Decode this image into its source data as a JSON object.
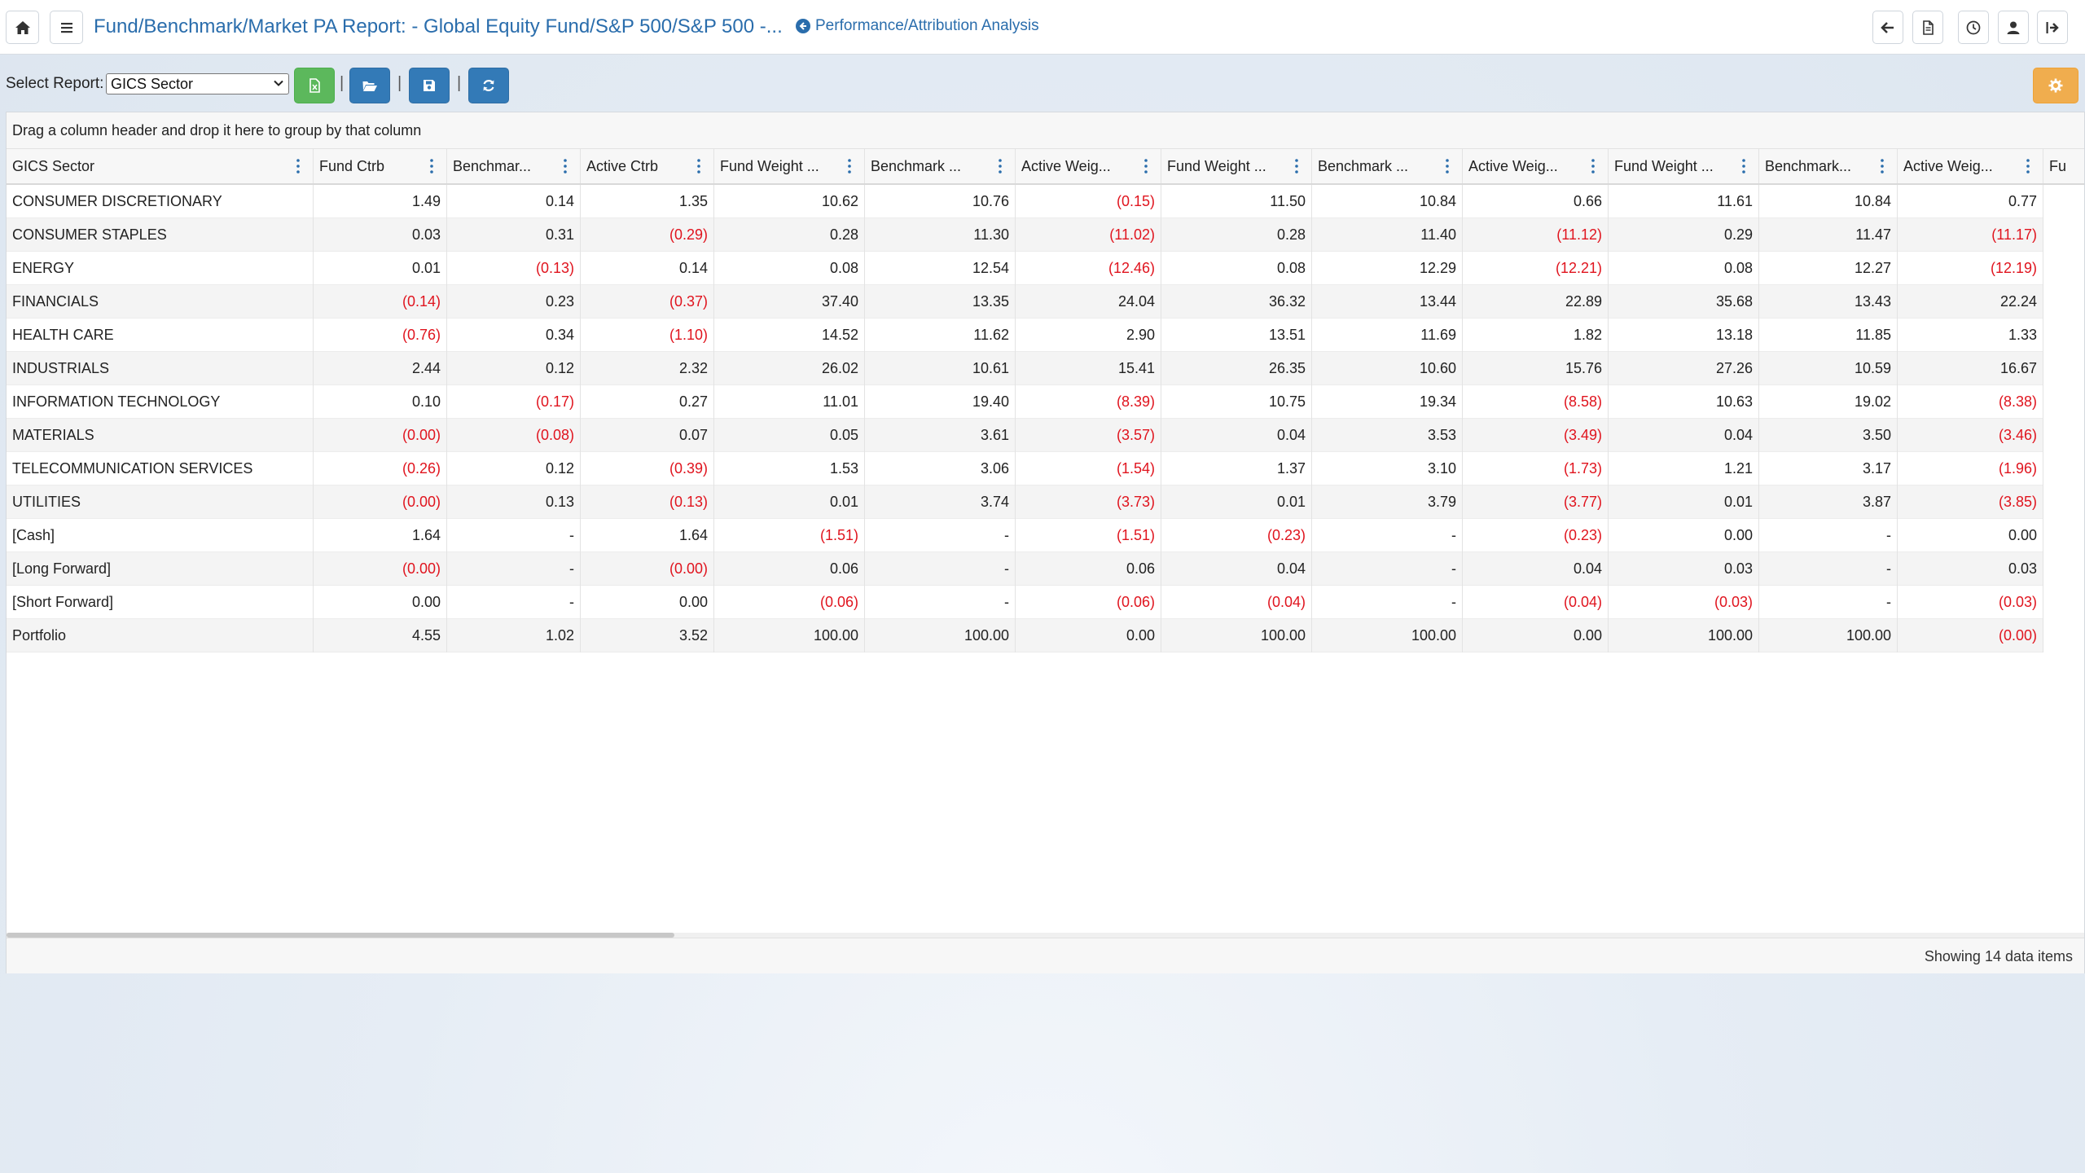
{
  "header": {
    "title": "Fund/Benchmark/Market PA Report: - Global Equity Fund/S&P 500/S&P 500 -...",
    "analysis_link": "Performance/Attribution Analysis",
    "icons": [
      "home-icon",
      "menu-icon",
      "back-arrow-icon",
      "document-icon",
      "clock-icon",
      "user-icon",
      "logout-icon"
    ]
  },
  "toolbar": {
    "select_label": "Select Report:",
    "select_value": "GICS Sector",
    "separator": "|",
    "buttons": [
      "export-excel-icon",
      "folder-open-icon",
      "save-icon",
      "refresh-icon",
      "settings-icon"
    ]
  },
  "grid": {
    "group_hint": "Drag a column header and drop it here to group by that column",
    "columns": [
      "GICS Sector",
      "Fund Ctrb",
      "Benchmar...",
      "Active Ctrb",
      "Fund Weight ...",
      "Benchmark ...",
      "Active Weig...",
      "Fund Weight ...",
      "Benchmark ...",
      "Active Weig...",
      "Fund Weight ...",
      "Benchmark...",
      "Active Weig...",
      "Fu"
    ],
    "rows": [
      [
        "CONSUMER DISCRETIONARY",
        "1.49",
        "0.14",
        "1.35",
        "10.62",
        "10.76",
        "(0.15)",
        "11.50",
        "10.84",
        "0.66",
        "11.61",
        "10.84",
        "0.77"
      ],
      [
        "CONSUMER STAPLES",
        "0.03",
        "0.31",
        "(0.29)",
        "0.28",
        "11.30",
        "(11.02)",
        "0.28",
        "11.40",
        "(11.12)",
        "0.29",
        "11.47",
        "(11.17)"
      ],
      [
        "ENERGY",
        "0.01",
        "(0.13)",
        "0.14",
        "0.08",
        "12.54",
        "(12.46)",
        "0.08",
        "12.29",
        "(12.21)",
        "0.08",
        "12.27",
        "(12.19)"
      ],
      [
        "FINANCIALS",
        "(0.14)",
        "0.23",
        "(0.37)",
        "37.40",
        "13.35",
        "24.04",
        "36.32",
        "13.44",
        "22.89",
        "35.68",
        "13.43",
        "22.24"
      ],
      [
        "HEALTH CARE",
        "(0.76)",
        "0.34",
        "(1.10)",
        "14.52",
        "11.62",
        "2.90",
        "13.51",
        "11.69",
        "1.82",
        "13.18",
        "11.85",
        "1.33"
      ],
      [
        "INDUSTRIALS",
        "2.44",
        "0.12",
        "2.32",
        "26.02",
        "10.61",
        "15.41",
        "26.35",
        "10.60",
        "15.76",
        "27.26",
        "10.59",
        "16.67"
      ],
      [
        "INFORMATION TECHNOLOGY",
        "0.10",
        "(0.17)",
        "0.27",
        "11.01",
        "19.40",
        "(8.39)",
        "10.75",
        "19.34",
        "(8.58)",
        "10.63",
        "19.02",
        "(8.38)"
      ],
      [
        "MATERIALS",
        "(0.00)",
        "(0.08)",
        "0.07",
        "0.05",
        "3.61",
        "(3.57)",
        "0.04",
        "3.53",
        "(3.49)",
        "0.04",
        "3.50",
        "(3.46)"
      ],
      [
        "TELECOMMUNICATION SERVICES",
        "(0.26)",
        "0.12",
        "(0.39)",
        "1.53",
        "3.06",
        "(1.54)",
        "1.37",
        "3.10",
        "(1.73)",
        "1.21",
        "3.17",
        "(1.96)"
      ],
      [
        "UTILITIES",
        "(0.00)",
        "0.13",
        "(0.13)",
        "0.01",
        "3.74",
        "(3.73)",
        "0.01",
        "3.79",
        "(3.77)",
        "0.01",
        "3.87",
        "(3.85)"
      ],
      [
        "[Cash]",
        "1.64",
        "-",
        "1.64",
        "(1.51)",
        "-",
        "(1.51)",
        "(0.23)",
        "-",
        "(0.23)",
        "0.00",
        "-",
        "0.00"
      ],
      [
        "[Long Forward]",
        "(0.00)",
        "-",
        "(0.00)",
        "0.06",
        "-",
        "0.06",
        "0.04",
        "-",
        "0.04",
        "0.03",
        "-",
        "0.03"
      ],
      [
        "[Short Forward]",
        "0.00",
        "-",
        "0.00",
        "(0.06)",
        "-",
        "(0.06)",
        "(0.04)",
        "-",
        "(0.04)",
        "(0.03)",
        "-",
        "(0.03)"
      ],
      [
        "Portfolio",
        "4.55",
        "1.02",
        "3.52",
        "100.00",
        "100.00",
        "0.00",
        "100.00",
        "100.00",
        "0.00",
        "100.00",
        "100.00",
        "(0.00)"
      ]
    ],
    "footer_count": "Showing 14 data items"
  },
  "colors": {
    "link": "#2a6dac",
    "negative": "#e0141e",
    "green_button": "#5cb85c",
    "blue_button": "#337ab7",
    "orange_button": "#f0ad4e"
  }
}
